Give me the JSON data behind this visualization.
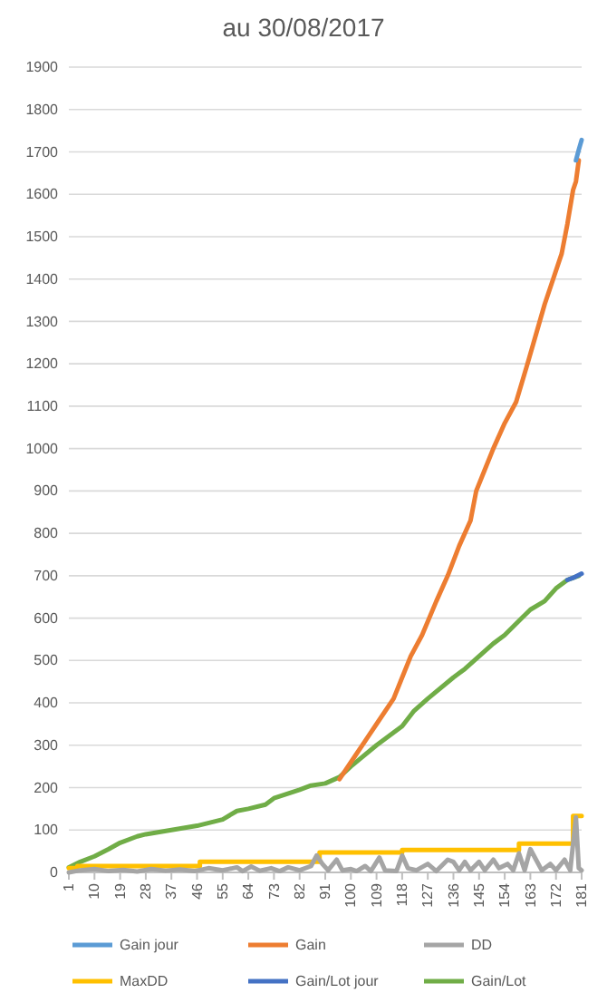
{
  "chart_data": {
    "type": "line",
    "title": "au 30/08/2017",
    "xlim": [
      1,
      181
    ],
    "xticks": [
      1,
      10,
      19,
      28,
      37,
      46,
      55,
      64,
      73,
      82,
      91,
      100,
      109,
      118,
      127,
      136,
      145,
      154,
      163,
      172,
      181
    ],
    "ylim": [
      0,
      1900
    ],
    "yticks": [
      0,
      100,
      200,
      300,
      400,
      500,
      600,
      700,
      800,
      900,
      1000,
      1100,
      1200,
      1300,
      1400,
      1500,
      1600,
      1700,
      1800,
      1900
    ],
    "grid": "y",
    "legend": "bottom",
    "marker": "none",
    "line_style": "solid",
    "series": [
      {
        "name": "Gain jour",
        "color": "#5b9bd5",
        "x": [
          179,
          180,
          181
        ],
        "values": [
          1680,
          1705,
          1728
        ]
      },
      {
        "name": "Gain",
        "color": "#ed7d31",
        "x": [
          96,
          100,
          105,
          110,
          115,
          118,
          121,
          125,
          130,
          134,
          138,
          142,
          144,
          147,
          150,
          154,
          158,
          162,
          165,
          168,
          171,
          174,
          176,
          178,
          179,
          180
        ],
        "values": [
          220,
          260,
          310,
          360,
          410,
          460,
          510,
          560,
          640,
          700,
          770,
          830,
          900,
          950,
          1000,
          1060,
          1110,
          1200,
          1270,
          1340,
          1400,
          1460,
          1530,
          1610,
          1630,
          1680
        ]
      },
      {
        "name": "DD",
        "color": "#a5a5a5",
        "x": [
          1,
          5,
          10,
          15,
          20,
          25,
          30,
          35,
          40,
          45,
          50,
          55,
          60,
          62,
          65,
          68,
          72,
          75,
          78,
          82,
          86,
          88,
          90,
          92,
          95,
          97,
          100,
          102,
          105,
          107,
          110,
          112,
          116,
          118,
          120,
          123,
          127,
          130,
          134,
          136,
          138,
          140,
          142,
          145,
          147,
          150,
          152,
          155,
          157,
          159,
          161,
          163,
          165,
          167,
          170,
          172,
          175,
          177,
          179,
          180,
          181
        ],
        "values": [
          0,
          5,
          8,
          3,
          6,
          2,
          8,
          4,
          7,
          3,
          10,
          5,
          12,
          3,
          14,
          4,
          10,
          3,
          12,
          5,
          15,
          40,
          20,
          5,
          30,
          5,
          8,
          3,
          15,
          3,
          35,
          5,
          3,
          40,
          10,
          5,
          20,
          3,
          30,
          25,
          5,
          25,
          5,
          25,
          5,
          30,
          10,
          20,
          5,
          45,
          5,
          55,
          30,
          5,
          20,
          5,
          30,
          5,
          130,
          10,
          5
        ]
      },
      {
        "name": "MaxDD",
        "color": "#ffc000",
        "type": "step",
        "x": [
          1,
          4,
          47,
          89,
          118,
          159,
          178,
          181
        ],
        "values": [
          10,
          15,
          25,
          47,
          53,
          68,
          133,
          133
        ]
      },
      {
        "name": "Gain/Lot jour",
        "color": "#4472c4",
        "x": [
          176,
          178,
          181
        ],
        "values": [
          690,
          695,
          705
        ]
      },
      {
        "name": "Gain/Lot",
        "color": "#70ad47",
        "x": [
          1,
          5,
          10,
          15,
          19,
          25,
          28,
          37,
          46,
          55,
          60,
          64,
          70,
          73,
          82,
          86,
          91,
          96,
          100,
          109,
          118,
          122,
          127,
          136,
          140,
          145,
          150,
          154,
          160,
          163,
          168,
          172,
          176,
          180
        ],
        "values": [
          12,
          25,
          38,
          55,
          70,
          85,
          90,
          100,
          110,
          125,
          145,
          150,
          160,
          175,
          195,
          205,
          210,
          225,
          250,
          300,
          345,
          380,
          410,
          460,
          480,
          510,
          540,
          560,
          600,
          620,
          640,
          670,
          690,
          700
        ]
      }
    ]
  }
}
